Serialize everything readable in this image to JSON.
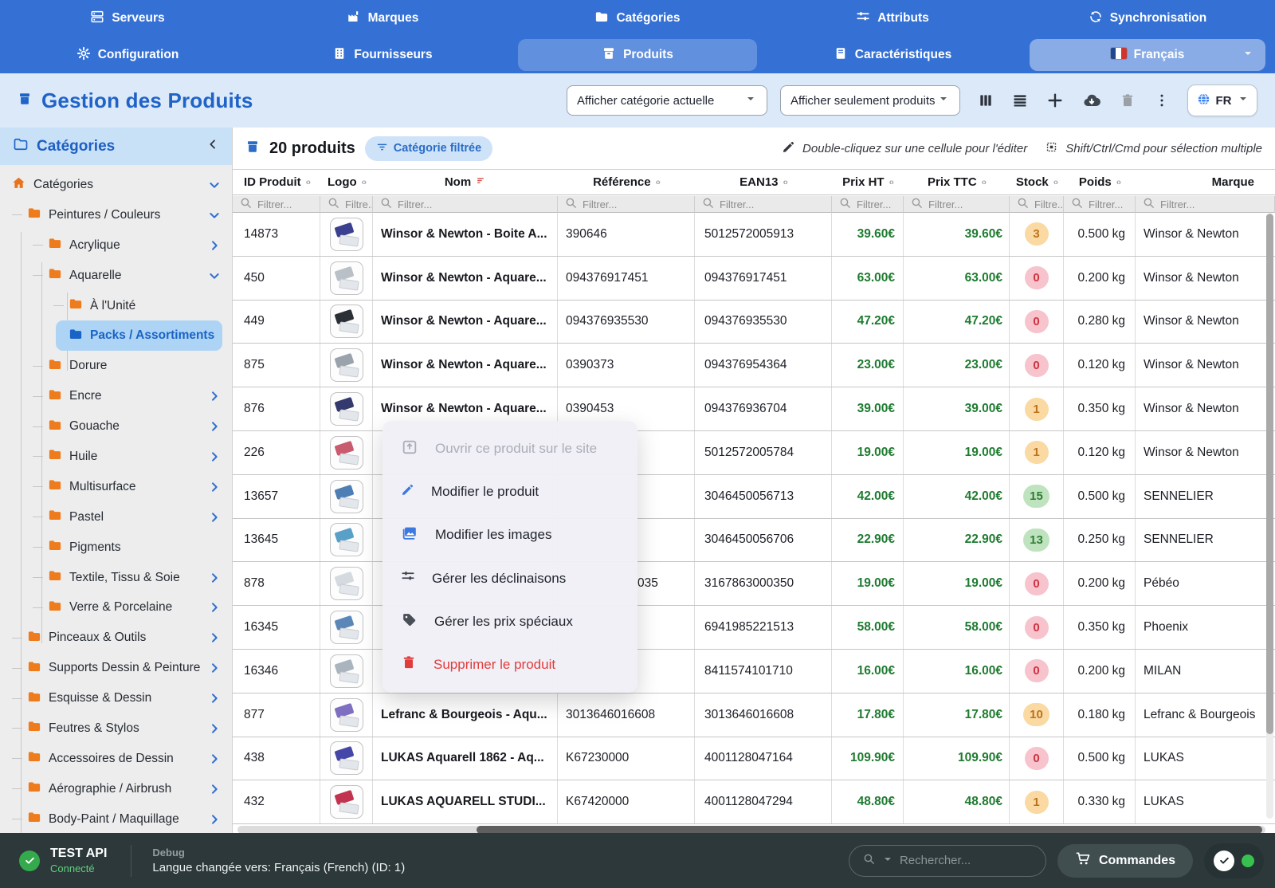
{
  "nav": {
    "row1": [
      {
        "label": "Serveurs",
        "icon": "server-icon"
      },
      {
        "label": "Marques",
        "icon": "factory-icon"
      },
      {
        "label": "Catégories",
        "icon": "folder-icon"
      },
      {
        "label": "Attributs",
        "icon": "sliders-icon"
      },
      {
        "label": "Synchronisation",
        "icon": "sync-icon"
      }
    ],
    "row2": [
      {
        "label": "Configuration",
        "icon": "gear-icon"
      },
      {
        "label": "Fournisseurs",
        "icon": "building-icon"
      },
      {
        "label": "Produits",
        "icon": "box-icon",
        "active": true
      },
      {
        "label": "Caractéristiques",
        "icon": "doc-icon"
      },
      {
        "label": "Français",
        "icon": "french-flag-icon",
        "language": true
      }
    ]
  },
  "header": {
    "title": "Gestion des Produits",
    "select_category": "Afficher catégorie actuelle",
    "select_display": "Afficher seulement produits",
    "lang_button": "FR"
  },
  "sidebar": {
    "title": "Catégories",
    "items": [
      {
        "label": "Catégories",
        "depth": 0,
        "icon": "home-icon",
        "chevron": "down"
      },
      {
        "label": "Peintures / Couleurs",
        "depth": 1,
        "icon": "folder-icon",
        "chevron": "down"
      },
      {
        "label": "Acrylique",
        "depth": 2,
        "icon": "folder-icon",
        "chevron": "right"
      },
      {
        "label": "Aquarelle",
        "depth": 2,
        "icon": "folder-icon",
        "chevron": "down"
      },
      {
        "label": "À l'Unité",
        "depth": 3,
        "icon": "folder-icon",
        "chevron": "none"
      },
      {
        "label": "Packs / Assortiments",
        "depth": 3,
        "icon": "folder-icon",
        "chevron": "none",
        "selected": true
      },
      {
        "label": "Dorure",
        "depth": 2,
        "icon": "folder-icon",
        "chevron": "none"
      },
      {
        "label": "Encre",
        "depth": 2,
        "icon": "folder-icon",
        "chevron": "right"
      },
      {
        "label": "Gouache",
        "depth": 2,
        "icon": "folder-icon",
        "chevron": "right"
      },
      {
        "label": "Huile",
        "depth": 2,
        "icon": "folder-icon",
        "chevron": "right"
      },
      {
        "label": "Multisurface",
        "depth": 2,
        "icon": "folder-icon",
        "chevron": "right"
      },
      {
        "label": "Pastel",
        "depth": 2,
        "icon": "folder-icon",
        "chevron": "right"
      },
      {
        "label": "Pigments",
        "depth": 2,
        "icon": "folder-icon",
        "chevron": "none"
      },
      {
        "label": "Textile, Tissu & Soie",
        "depth": 2,
        "icon": "folder-icon",
        "chevron": "right"
      },
      {
        "label": "Verre & Porcelaine",
        "depth": 2,
        "icon": "folder-icon",
        "chevron": "right"
      },
      {
        "label": "Pinceaux & Outils",
        "depth": 1,
        "icon": "folder-icon",
        "chevron": "right"
      },
      {
        "label": "Supports Dessin & Peinture",
        "depth": 1,
        "icon": "folder-icon",
        "chevron": "right"
      },
      {
        "label": "Esquisse & Dessin",
        "depth": 1,
        "icon": "folder-icon",
        "chevron": "right"
      },
      {
        "label": "Feutres & Stylos",
        "depth": 1,
        "icon": "folder-icon",
        "chevron": "right"
      },
      {
        "label": "Accessoires de Dessin",
        "depth": 1,
        "icon": "folder-icon",
        "chevron": "right"
      },
      {
        "label": "Aérographie / Airbrush",
        "depth": 1,
        "icon": "folder-icon",
        "chevron": "right"
      },
      {
        "label": "Body-Paint / Maquillage",
        "depth": 1,
        "icon": "folder-icon",
        "chevron": "right"
      }
    ]
  },
  "table": {
    "count": "20 produits",
    "badge": "Catégorie filtrée",
    "hint_edit": "Double-cliquez sur une cellule pour l'éditer",
    "hint_select": "Shift/Ctrl/Cmd pour sélection multiple",
    "columns": [
      {
        "label": "ID Produit",
        "sort": "updown",
        "align": "al"
      },
      {
        "label": "Logo",
        "sort": "updown"
      },
      {
        "label": "Nom",
        "sort": "active"
      },
      {
        "label": "Référence",
        "sort": "updown"
      },
      {
        "label": "EAN13",
        "sort": "updown"
      },
      {
        "label": "Prix HT",
        "sort": "updown"
      },
      {
        "label": "Prix TTC",
        "sort": "updown"
      },
      {
        "label": "Stock",
        "sort": "updown"
      },
      {
        "label": "Poids",
        "sort": "updown"
      },
      {
        "label": "Marque",
        "sort": "none",
        "align": "ar"
      }
    ],
    "filters": [
      "Filtrer...",
      "Filtre...",
      "Filtrer...",
      "Filtrer...",
      "Filtrer...",
      "Filtrer...",
      "Filtrer...",
      "Filtre...",
      "Filtrer...",
      "Filtrer..."
    ],
    "rows": [
      {
        "id": "14873",
        "name": "Winsor & Newton - Boite A...",
        "reference": "390646",
        "ean13": "5012572005913",
        "prix_ht": "39.60€",
        "prix_ttc": "39.60€",
        "stock": "3",
        "stock_level": "warn",
        "poids": "0.500 kg",
        "marque": "Winsor & Newton",
        "thumb_accent": "#3a3f8f"
      },
      {
        "id": "450",
        "name": "Winsor & Newton - Aquare...",
        "reference": "094376917451",
        "ean13": "094376917451",
        "prix_ht": "63.00€",
        "prix_ttc": "63.00€",
        "stock": "0",
        "stock_level": "danger",
        "poids": "0.200 kg",
        "marque": "Winsor & Newton",
        "thumb_accent": "#b9c0c8"
      },
      {
        "id": "449",
        "name": "Winsor & Newton - Aquare...",
        "reference": "094376935530",
        "ean13": "094376935530",
        "prix_ht": "47.20€",
        "prix_ttc": "47.20€",
        "stock": "0",
        "stock_level": "danger",
        "poids": "0.280 kg",
        "marque": "Winsor & Newton",
        "thumb_accent": "#2b2f36"
      },
      {
        "id": "875",
        "name": "Winsor & Newton - Aquare...",
        "reference": "0390373",
        "ean13": "094376954364",
        "prix_ht": "23.00€",
        "prix_ttc": "23.00€",
        "stock": "0",
        "stock_level": "danger",
        "poids": "0.120 kg",
        "marque": "Winsor & Newton",
        "thumb_accent": "#9aa2ac"
      },
      {
        "id": "876",
        "name": "Winsor & Newton - Aquare...",
        "reference": "0390453",
        "ean13": "094376936704",
        "prix_ht": "39.00€",
        "prix_ttc": "39.00€",
        "stock": "1",
        "stock_level": "warn",
        "poids": "0.350 kg",
        "marque": "Winsor & Newton",
        "thumb_accent": "#343a6e"
      },
      {
        "id": "226",
        "name": "",
        "reference": "",
        "ean13": "5012572005784",
        "prix_ht": "19.00€",
        "prix_ttc": "19.00€",
        "stock": "1",
        "stock_level": "warn",
        "poids": "0.120 kg",
        "marque": "Winsor & Newton",
        "thumb_accent": "#c95b6e"
      },
      {
        "id": "13657",
        "name": "",
        "reference": "",
        "ean13": "3046450056713",
        "prix_ht": "42.00€",
        "prix_ttc": "42.00€",
        "stock": "15",
        "stock_level": "ok",
        "poids": "0.500 kg",
        "marque": "SENNELIER",
        "thumb_accent": "#4d7fb5"
      },
      {
        "id": "13645",
        "name": "",
        "reference": "",
        "ean13": "3046450056706",
        "prix_ht": "22.90€",
        "prix_ttc": "22.90€",
        "stock": "13",
        "stock_level": "ok",
        "poids": "0.250 kg",
        "marque": "SENNELIER",
        "thumb_accent": "#58a0c8"
      },
      {
        "id": "878",
        "name": "",
        "reference": "035",
        "ref_shift": true,
        "ean13": "3167863000350",
        "prix_ht": "19.00€",
        "prix_ttc": "19.00€",
        "stock": "0",
        "stock_level": "danger",
        "poids": "0.200 kg",
        "marque": "Pébéo",
        "thumb_accent": "#d4dae0"
      },
      {
        "id": "16345",
        "name": "",
        "reference": "",
        "ean13": "6941985221513",
        "prix_ht": "58.00€",
        "prix_ttc": "58.00€",
        "stock": "0",
        "stock_level": "danger",
        "poids": "0.350 kg",
        "marque": "Phoenix",
        "thumb_accent": "#5b87b8"
      },
      {
        "id": "16346",
        "name": "",
        "reference": "",
        "ean13": "8411574101710",
        "prix_ht": "16.00€",
        "prix_ttc": "16.00€",
        "stock": "0",
        "stock_level": "danger",
        "poids": "0.200 kg",
        "marque": "MILAN",
        "thumb_accent": "#aab4be"
      },
      {
        "id": "877",
        "name": "Lefranc & Bourgeois - Aqu...",
        "reference": "3013646016608",
        "ean13": "3013646016608",
        "prix_ht": "17.80€",
        "prix_ttc": "17.80€",
        "stock": "10",
        "stock_level": "warn",
        "poids": "0.180 kg",
        "marque": "Lefranc & Bourgeois",
        "thumb_accent": "#7f6fc0"
      },
      {
        "id": "438",
        "name": "LUKAS Aquarell 1862 - Aq...",
        "reference": "K67230000",
        "ean13": "4001128047164",
        "prix_ht": "109.90€",
        "prix_ttc": "109.90€",
        "stock": "0",
        "stock_level": "danger",
        "poids": "0.500 kg",
        "marque": "LUKAS",
        "thumb_accent": "#4646a8"
      },
      {
        "id": "432",
        "name": "LUKAS AQUARELL STUDI...",
        "reference": "K67420000",
        "ean13": "4001128047294",
        "prix_ht": "48.80€",
        "prix_ttc": "48.80€",
        "stock": "1",
        "stock_level": "warn",
        "poids": "0.330 kg",
        "marque": "LUKAS",
        "thumb_accent": "#c23350"
      }
    ]
  },
  "context_menu": {
    "items": [
      {
        "label": "Ouvrir ce produit sur le site",
        "icon": "external-link-icon",
        "disabled": true
      },
      {
        "label": "Modifier le produit",
        "icon": "pencil-icon",
        "color": "#3b78e0"
      },
      {
        "label": "Modifier les images",
        "icon": "images-icon",
        "color": "#3b78e0"
      },
      {
        "label": "Gérer les déclinaisons",
        "icon": "sliders-icon",
        "color": "#3f4750"
      },
      {
        "label": "Gérer les prix spéciaux",
        "icon": "tag-icon",
        "color": "#4a4f57"
      },
      {
        "label": "Supprimer le produit",
        "icon": "trash-icon",
        "danger": true,
        "color": "#e23b3b"
      }
    ]
  },
  "footer": {
    "app_name": "TEST API",
    "status": "Connecté",
    "debug_label": "Debug",
    "debug_message": "Langue changée vers: Français (French) (ID: 1)",
    "search_placeholder": "Rechercher...",
    "orders_label": "Commandes"
  },
  "colors": {
    "nav_blue": "#3571d5",
    "header_bg": "#dbe9f8",
    "title_blue": "#2063c8",
    "selection_blue": "#aed4f5",
    "folder_orange": "#ee7b1c",
    "price_green": "#1e7b30",
    "stock_warn_bg": "#fad9a2",
    "stock_danger_bg": "#f7c3cd",
    "stock_ok_bg": "#bfe3bf",
    "danger_red": "#e23b3b",
    "footer_bg": "#2c3839"
  }
}
